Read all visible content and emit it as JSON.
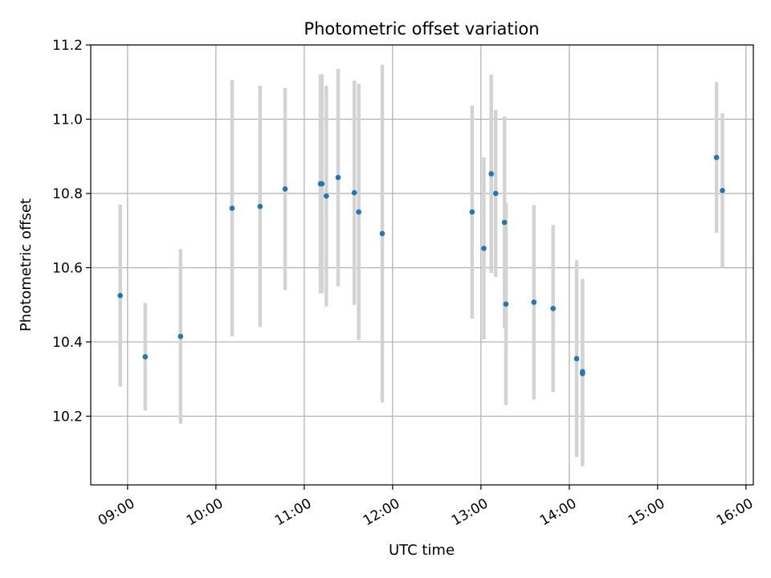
{
  "chart_data": {
    "type": "scatter",
    "title": "Photometric offset variation",
    "xlabel": "UTC time",
    "ylabel": "Photometric offset",
    "x_ticks": [
      "09:00",
      "10:00",
      "11:00",
      "12:00",
      "13:00",
      "14:00",
      "15:00",
      "16:00"
    ],
    "y_ticks": [
      10.2,
      10.4,
      10.6,
      10.8,
      11.0,
      11.2
    ],
    "ylim": [
      10.015,
      11.2
    ],
    "xlim": [
      "08:35",
      "16:05"
    ],
    "grid": true,
    "colors": {
      "points": "#1f77b4",
      "errorbars": "#d3d3d3",
      "grid": "#b0b0b0"
    },
    "points": [
      {
        "x": "08:55",
        "y": 10.525,
        "err": 0.245
      },
      {
        "x": "09:12",
        "y": 10.36,
        "err": 0.145
      },
      {
        "x": "09:36",
        "y": 10.415,
        "err": 0.235
      },
      {
        "x": "10:11",
        "y": 10.76,
        "err": 0.345
      },
      {
        "x": "10:30",
        "y": 10.765,
        "err": 0.325
      },
      {
        "x": "10:47",
        "y": 10.812,
        "err": 0.272
      },
      {
        "x": "11:11",
        "y": 10.826,
        "err": 0.295
      },
      {
        "x": "11:12",
        "y": 10.826,
        "err": 0.295
      },
      {
        "x": "11:15",
        "y": 10.793,
        "err": 0.297
      },
      {
        "x": "11:23",
        "y": 10.843,
        "err": 0.293
      },
      {
        "x": "11:34",
        "y": 10.802,
        "err": 0.302
      },
      {
        "x": "11:37",
        "y": 10.75,
        "err": 0.345
      },
      {
        "x": "11:53",
        "y": 10.692,
        "err": 0.455
      },
      {
        "x": "12:54",
        "y": 10.75,
        "err": 0.287
      },
      {
        "x": "13:02",
        "y": 10.652,
        "err": 0.245
      },
      {
        "x": "13:07",
        "y": 10.853,
        "err": 0.267
      },
      {
        "x": "13:10",
        "y": 10.8,
        "err": 0.225
      },
      {
        "x": "13:16",
        "y": 10.722,
        "err": 0.285
      },
      {
        "x": "13:17",
        "y": 10.502,
        "err": 0.272
      },
      {
        "x": "13:36",
        "y": 10.507,
        "err": 0.262
      },
      {
        "x": "13:49",
        "y": 10.49,
        "err": 0.225
      },
      {
        "x": "14:05",
        "y": 10.355,
        "err": 0.265
      },
      {
        "x": "14:09",
        "y": 10.32,
        "err": 0.25
      },
      {
        "x": "14:09",
        "y": 10.315,
        "err": 0.25
      },
      {
        "x": "15:40",
        "y": 10.897,
        "err": 0.203
      },
      {
        "x": "15:44",
        "y": 10.808,
        "err": 0.208
      }
    ]
  }
}
